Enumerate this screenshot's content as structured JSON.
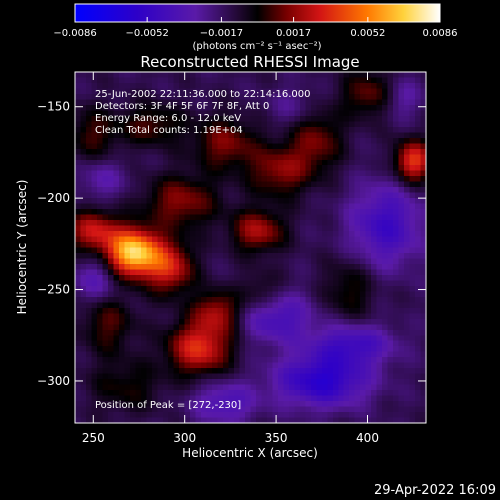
{
  "chart_data": {
    "type": "heatmap",
    "title": "Reconstructed RHESSI Image",
    "xlabel": "Heliocentric X (arcsec)",
    "ylabel": "Heliocentric Y (arcsec)",
    "xlim": [
      240,
      432
    ],
    "ylim": [
      -323,
      -131
    ],
    "x_ticks": [
      250,
      300,
      350,
      400
    ],
    "y_ticks": [
      -300,
      -250,
      -200,
      -150
    ],
    "x_tick_labels": [
      "250",
      "300",
      "350",
      "400"
    ],
    "y_tick_labels": [
      "−300",
      "−250",
      "−200",
      "−150"
    ],
    "colorbar": {
      "min": -0.0086,
      "max": 0.0086,
      "ticks": [
        -0.0086,
        -0.0052,
        -0.0017,
        0.0017,
        0.0052,
        0.0086
      ],
      "tick_labels": [
        "−0.0086",
        "−0.0052",
        "−0.0017",
        "0.0017",
        "0.0052",
        "0.0086"
      ],
      "units_label": "(photons cm⁻² s⁻¹ asec⁻²)"
    },
    "annotations": [
      "25-Jun-2002 22:11:36.000 to 22:14:16.000",
      "Detectors: 3F 4F 5F 6F 7F 8F, Att 0",
      "Energy Range: 6.0 - 12.0 keV",
      "Clean     Total counts: 1.19E+04"
    ],
    "peak_label": "Position of Peak = [272,-230]",
    "peak": {
      "x": 272,
      "y": -230,
      "value": 0.0086
    },
    "blobs": [
      {
        "x": 272,
        "y": -230,
        "sx": 10,
        "sy": 9,
        "v": 0.0086
      },
      {
        "x": 292,
        "y": -238,
        "sx": 9,
        "sy": 10,
        "v": 0.0042
      },
      {
        "x": 250,
        "y": -218,
        "sx": 10,
        "sy": 8,
        "v": 0.004
      },
      {
        "x": 258,
        "y": -268,
        "sx": 10,
        "sy": 12,
        "v": 0.0022
      },
      {
        "x": 308,
        "y": -282,
        "sx": 12,
        "sy": 10,
        "v": 0.0048
      },
      {
        "x": 318,
        "y": -262,
        "sx": 9,
        "sy": 8,
        "v": 0.0034
      },
      {
        "x": 298,
        "y": -202,
        "sx": 14,
        "sy": 10,
        "v": 0.003
      },
      {
        "x": 340,
        "y": -218,
        "sx": 10,
        "sy": 8,
        "v": 0.0036
      },
      {
        "x": 352,
        "y": -185,
        "sx": 12,
        "sy": 10,
        "v": 0.003
      },
      {
        "x": 322,
        "y": -170,
        "sx": 12,
        "sy": 10,
        "v": 0.0028
      },
      {
        "x": 282,
        "y": -160,
        "sx": 12,
        "sy": 8,
        "v": 0.0022
      },
      {
        "x": 372,
        "y": -168,
        "sx": 10,
        "sy": 12,
        "v": 0.0026
      },
      {
        "x": 402,
        "y": -143,
        "sx": 11,
        "sy": 9,
        "v": 0.0026
      },
      {
        "x": 425,
        "y": -180,
        "sx": 7,
        "sy": 8,
        "v": 0.0052
      },
      {
        "x": 390,
        "y": -250,
        "sx": 10,
        "sy": 12,
        "v": 0.0018
      },
      {
        "x": 268,
        "y": -303,
        "sx": 14,
        "sy": 10,
        "v": 0.0016
      },
      {
        "x": 250,
        "y": -165,
        "sx": 10,
        "sy": 10,
        "v": 0.002
      },
      {
        "x": 342,
        "y": -252,
        "sx": 8,
        "sy": 8,
        "v": 0.0018
      },
      {
        "x": 375,
        "y": -300,
        "sx": 18,
        "sy": 10,
        "v": -0.0045
      },
      {
        "x": 350,
        "y": -265,
        "sx": 14,
        "sy": 10,
        "v": -0.003
      },
      {
        "x": 410,
        "y": -215,
        "sx": 14,
        "sy": 16,
        "v": -0.0034
      },
      {
        "x": 322,
        "y": -312,
        "sx": 12,
        "sy": 8,
        "v": -0.0026
      },
      {
        "x": 252,
        "y": -245,
        "sx": 9,
        "sy": 9,
        "v": -0.0022
      },
      {
        "x": 392,
        "y": -280,
        "sx": 16,
        "sy": 8,
        "v": -0.0032
      },
      {
        "x": 418,
        "y": -145,
        "sx": 8,
        "sy": 8,
        "v": -0.002
      },
      {
        "x": 255,
        "y": -190,
        "sx": 10,
        "sy": 8,
        "v": -0.0016
      },
      {
        "x": 360,
        "y": -150,
        "sx": 10,
        "sy": 8,
        "v": -0.0012
      }
    ]
  },
  "footer": {
    "date": "29-Apr-2022 16:09"
  }
}
